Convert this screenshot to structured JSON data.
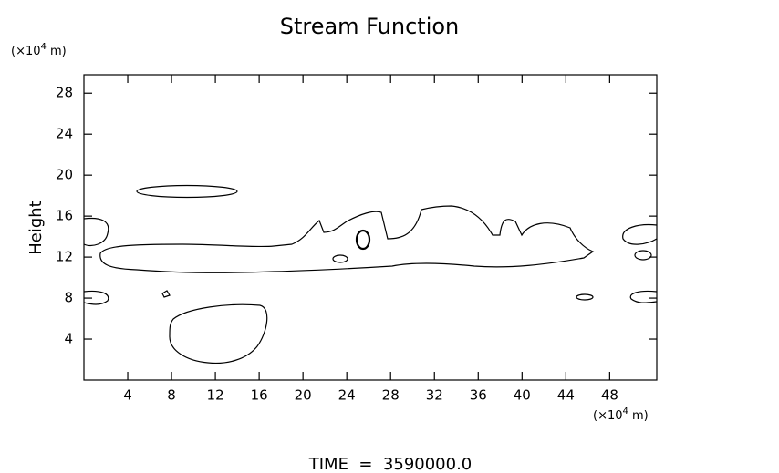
{
  "chart_data": {
    "type": "contour",
    "title": "Stream Function",
    "y_unit": {
      "prefix": "(×10",
      "exponent": "4",
      "suffix": " m)"
    },
    "x_unit": {
      "prefix": "(×10",
      "exponent": "4",
      "suffix": " m)"
    },
    "y_label": "Height",
    "footer": "TIME  =  3590000.0",
    "xlim": [
      0,
      52.3
    ],
    "ylim": [
      0,
      29.8
    ],
    "xticks": [
      4,
      8,
      12,
      16,
      20,
      24,
      28,
      32,
      36,
      40,
      44,
      48
    ],
    "yticks": [
      4,
      8,
      12,
      16,
      20,
      24,
      28
    ],
    "color": "#000000"
  }
}
